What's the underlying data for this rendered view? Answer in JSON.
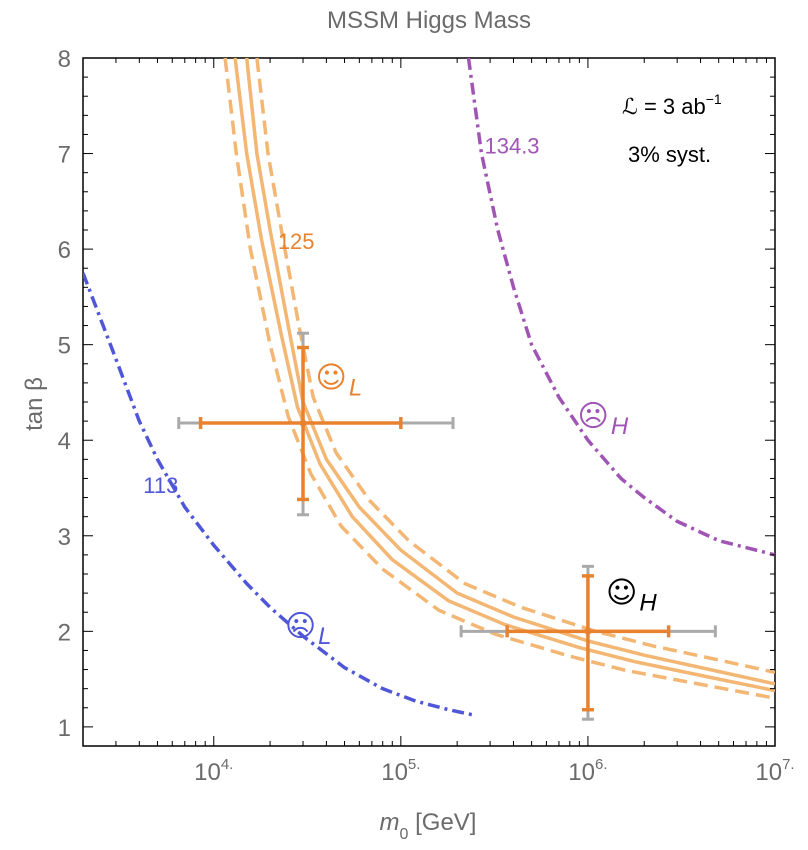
{
  "chart_data": {
    "type": "line",
    "title": "MSSM Higgs Mass",
    "xlabel_main": "m",
    "xlabel_sub": "0",
    "xlabel_unit": " [GeV]",
    "ylabel": "tan β",
    "xscale": "log",
    "xlim": [
      2000,
      10000000
    ],
    "ylim": [
      0.8,
      8
    ],
    "x_ticks": [
      {
        "value": 10000,
        "base": "10",
        "exp": "4."
      },
      {
        "value": 100000,
        "base": "10",
        "exp": "5."
      },
      {
        "value": 1000000,
        "base": "10",
        "exp": "6."
      },
      {
        "value": 10000000,
        "base": "10",
        "exp": "7."
      }
    ],
    "y_ticks": [
      1,
      2,
      3,
      4,
      5,
      6,
      7,
      8
    ],
    "annotation_lumi": "ℒ = 3 ab",
    "annotation_lumi_exp": "−1",
    "annotation_syst": "3% syst.",
    "colors": {
      "orange": "#e8822f",
      "orange_light": "#f3b673",
      "blue": "#4f56d8",
      "purple": "#a055b4",
      "gray": "#aaaaaa"
    },
    "series": [
      {
        "label": "113",
        "style": "dash-dot",
        "color": "blue",
        "points": [
          [
            2000,
            5.75
          ],
          [
            3000,
            4.85
          ],
          [
            4000,
            4.2
          ],
          [
            5000,
            3.8
          ],
          [
            7000,
            3.3
          ],
          [
            10000,
            2.9
          ],
          [
            15000,
            2.5
          ],
          [
            20000,
            2.25
          ],
          [
            30000,
            1.95
          ],
          [
            50000,
            1.62
          ],
          [
            80000,
            1.4
          ],
          [
            120000,
            1.27
          ],
          [
            180000,
            1.18
          ],
          [
            250000,
            1.12
          ]
        ]
      },
      {
        "label": "125",
        "style": "solid",
        "color": "orange_light",
        "points": [
          [
            15000,
            8.0
          ],
          [
            17000,
            7.0
          ],
          [
            20000,
            6.2
          ],
          [
            25000,
            5.2
          ],
          [
            30000,
            4.4
          ],
          [
            40000,
            3.8
          ],
          [
            60000,
            3.3
          ],
          [
            100000,
            2.85
          ],
          [
            200000,
            2.4
          ],
          [
            400000,
            2.15
          ],
          [
            1000000,
            1.9
          ],
          [
            2000000,
            1.75
          ],
          [
            5000000,
            1.58
          ],
          [
            10000000,
            1.45
          ]
        ]
      },
      {
        "label": "",
        "style": "solid",
        "color": "orange_light",
        "points": [
          [
            13000,
            8.0
          ],
          [
            15000,
            7.0
          ],
          [
            18000,
            6.1
          ],
          [
            23000,
            5.1
          ],
          [
            28000,
            4.35
          ],
          [
            37000,
            3.75
          ],
          [
            55000,
            3.2
          ],
          [
            90000,
            2.75
          ],
          [
            180000,
            2.32
          ],
          [
            360000,
            2.07
          ],
          [
            900000,
            1.83
          ],
          [
            1800000,
            1.68
          ],
          [
            5000000,
            1.5
          ],
          [
            10000000,
            1.38
          ]
        ]
      },
      {
        "label": "",
        "style": "dashed",
        "color": "orange_light",
        "points": [
          [
            17000,
            8.0
          ],
          [
            19500,
            7.0
          ],
          [
            23000,
            6.2
          ],
          [
            28500,
            5.2
          ],
          [
            34000,
            4.45
          ],
          [
            45000,
            3.87
          ],
          [
            68000,
            3.37
          ],
          [
            110000,
            2.95
          ],
          [
            220000,
            2.5
          ],
          [
            440000,
            2.25
          ],
          [
            1100000,
            2.0
          ],
          [
            2200000,
            1.85
          ],
          [
            5000000,
            1.7
          ],
          [
            10000000,
            1.57
          ]
        ]
      },
      {
        "label": "",
        "style": "dashed",
        "color": "orange_light",
        "points": [
          [
            11500,
            8.0
          ],
          [
            13200,
            7.0
          ],
          [
            15700,
            6.0
          ],
          [
            20000,
            5.0
          ],
          [
            25000,
            4.25
          ],
          [
            33000,
            3.65
          ],
          [
            48000,
            3.1
          ],
          [
            80000,
            2.65
          ],
          [
            160000,
            2.22
          ],
          [
            320000,
            1.97
          ],
          [
            800000,
            1.74
          ],
          [
            1600000,
            1.59
          ],
          [
            5000000,
            1.41
          ],
          [
            10000000,
            1.3
          ]
        ]
      },
      {
        "label": "134.3",
        "style": "dash-dot",
        "color": "purple",
        "points": [
          [
            230000,
            8.0
          ],
          [
            270000,
            7.0
          ],
          [
            330000,
            6.2
          ],
          [
            400000,
            5.6
          ],
          [
            500000,
            5.0
          ],
          [
            700000,
            4.45
          ],
          [
            1000000,
            4.0
          ],
          [
            1500000,
            3.6
          ],
          [
            2000000,
            3.4
          ],
          [
            3000000,
            3.15
          ],
          [
            5000000,
            2.95
          ],
          [
            10000000,
            2.8
          ]
        ]
      }
    ],
    "error_bars": [
      {
        "x": 30000,
        "y": 4.18,
        "x_inner": [
          8500,
          100000
        ],
        "x_outer": [
          6500,
          190000
        ],
        "y_inner": [
          3.38,
          4.97
        ],
        "y_outer": [
          3.22,
          5.12
        ]
      },
      {
        "x": 1000000,
        "y": 2.0,
        "x_inner": [
          370000,
          2700000
        ],
        "x_outer": [
          210000,
          4800000
        ],
        "y_inner": [
          1.18,
          2.58
        ],
        "y_outer": [
          1.08,
          2.68
        ]
      }
    ],
    "markers": [
      {
        "symbol": "☺",
        "sub": "L",
        "color": "orange",
        "x": 35000,
        "y": 4.55
      },
      {
        "symbol": "☹",
        "sub": "H",
        "color": "purple",
        "x": 880000,
        "y": 4.15
      },
      {
        "symbol": "☺",
        "sub": "H",
        "color": "black",
        "x": 1250000,
        "y": 2.3
      },
      {
        "symbol": "☹",
        "sub": "L",
        "color": "blue",
        "x": 24000,
        "y": 1.95
      }
    ],
    "curve_labels": [
      {
        "text": "113",
        "color": "blue",
        "x": 4200,
        "y": 3.45
      },
      {
        "text": "125",
        "color": "orange",
        "x": 22000,
        "y": 6.0
      },
      {
        "text": "134.3",
        "color": "purple",
        "x": 280000,
        "y": 7.0
      }
    ]
  }
}
